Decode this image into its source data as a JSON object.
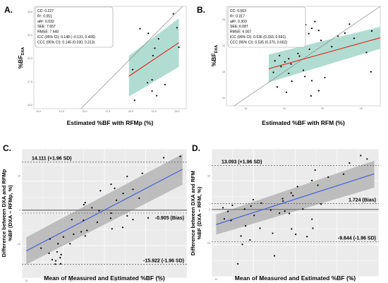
{
  "chart_data": [
    {
      "panel": "A.",
      "type": "scatter",
      "xlabel": "Estimated %BF with RFMp (%)",
      "ylabel": "%BF",
      "ylabel_sub": "DXA",
      "xlim": [
        9.5,
        26
      ],
      "ylim": [
        14.6,
        25.6
      ],
      "x_ticks": [
        "10.0",
        "12.5",
        "15.0",
        "17.5",
        "20.0",
        "22.5",
        "25.0"
      ],
      "y_ticks": [
        "15.0",
        "17.5",
        "20.0",
        "22.5",
        "25.0"
      ],
      "stats": [
        "CC: 0.227",
        "R²: 0.051",
        "aR²: 0.032",
        "SEE: 7.657",
        "RMSE: 7.640",
        "ICC (95% CI): 0.148 (−0.131, 0.406)",
        "CCC (95% CI): 0.145 (0.030, 0.313)"
      ],
      "identity_line": true,
      "fit_line": {
        "x": [
          19.8,
          25.2
        ],
        "y": [
          18.1,
          21.7
        ]
      },
      "ci_band": {
        "x": [
          19.8,
          25.2
        ],
        "upper": [
          20.3,
          24.3
        ],
        "lower": [
          15.9,
          19.1
        ]
      },
      "points": [
        [
          21.0,
          23.2
        ],
        [
          21.9,
          22.7
        ],
        [
          24.6,
          24.8
        ],
        [
          25.0,
          23.3
        ],
        [
          22.6,
          21.1
        ],
        [
          23.0,
          22.1
        ],
        [
          25.2,
          21.2
        ],
        [
          22.4,
          20.3
        ],
        [
          20.2,
          18.8
        ],
        [
          22.3,
          17.7
        ],
        [
          21.8,
          17.4
        ],
        [
          23.7,
          17.2
        ],
        [
          22.3,
          16.5
        ],
        [
          20.4,
          15.5
        ],
        [
          22.8,
          16.0
        ]
      ]
    },
    {
      "panel": "B.",
      "type": "scatter",
      "xlabel": "Estimated %BF with RFM (%)",
      "ylabel": "%BF",
      "ylabel_sub": "DXA",
      "xlim": [
        7.5,
        27.5
      ],
      "ylim": [
        8.5,
        27.5
      ],
      "x_ticks": [
        "10",
        "15",
        "20",
        "25"
      ],
      "y_ticks": [
        "10",
        "15",
        "20",
        "25"
      ],
      "stats": [
        "CC: 0.563",
        "R²: 0.317",
        "aR²: 0.303",
        "SEE: 6.087",
        "RMSE: 6.007",
        "ICC (95% CI): 0.536 (0.333, 0.691)",
        "CCC (95% CI): 0.535 (0.370, 0.662)"
      ],
      "identity_line": true,
      "fit_line": {
        "x": [
          13.0,
          27.5
        ],
        "y": [
          15.6,
          21.5
        ]
      },
      "ci_band": {
        "x": [
          13.0,
          27.5
        ],
        "upper": [
          18.3,
          23.6
        ],
        "lower": [
          13.0,
          19.4
        ]
      },
      "points": [
        [
          19.0,
          24.6
        ],
        [
          17.8,
          24.0
        ],
        [
          18.6,
          23.3
        ],
        [
          19.5,
          22.9
        ],
        [
          18.2,
          22.3
        ],
        [
          17.3,
          21.3
        ],
        [
          19.8,
          21.0
        ],
        [
          21.2,
          19.8
        ],
        [
          18.3,
          19.3
        ],
        [
          16.8,
          18.5
        ],
        [
          14.4,
          18.1
        ],
        [
          17.0,
          18.0
        ],
        [
          15.6,
          17.5
        ],
        [
          13.8,
          17.1
        ],
        [
          15.1,
          16.9
        ],
        [
          15.9,
          16.5
        ],
        [
          14.6,
          16.0
        ],
        [
          17.5,
          15.3
        ],
        [
          15.6,
          14.7
        ],
        [
          17.7,
          14.1
        ],
        [
          13.6,
          14.9
        ],
        [
          22.0,
          21.8
        ],
        [
          22.9,
          22.4
        ],
        [
          24.1,
          21.4
        ],
        [
          26.4,
          22.8
        ],
        [
          23.5,
          24.1
        ],
        [
          25.7,
          18.7
        ],
        [
          26.3,
          15.0
        ],
        [
          20.3,
          13.9
        ],
        [
          18.6,
          13.3
        ],
        [
          16.0,
          13.2
        ],
        [
          14.1,
          12.1
        ],
        [
          19.5,
          11.4
        ],
        [
          18.5,
          10.4
        ],
        [
          15.3,
          11.1
        ]
      ]
    },
    {
      "panel": "C.",
      "type": "scatter",
      "xlabel": "Mean of Measured and Estimated %BF (%)",
      "ylabel": "Difference between DXA and RFMp %BF (DXA − RFMp, %)",
      "ylabel_lines": [
        "Difference between DXA and RFMp",
        "%BF (DXA − RFMp, %)"
      ],
      "xlim": [
        9,
        46
      ],
      "ylim": [
        -20,
        18
      ],
      "x_ticks": [
        "10",
        "20",
        "30",
        "40"
      ],
      "y_ticks": [
        "-10",
        "0",
        "10"
      ],
      "limit_labels": {
        "upper": "14.111 (+1.96 SD)",
        "bias": "-0.905 (Bias)",
        "lower": "-15.922 (-1.96 SD)"
      },
      "limits": {
        "upper": 14.111,
        "bias": -0.905,
        "lower": -15.922
      },
      "fit_line": {
        "x": [
          10,
          45
        ],
        "y": [
          -12,
          12
        ]
      },
      "ci_band": {
        "x": [
          10,
          45
        ],
        "upper": [
          -8.0,
          16.5
        ],
        "lower": [
          -16.0,
          7.5
        ]
      },
      "points": [
        [
          40.8,
          15.4
        ],
        [
          44.5,
          15.8
        ],
        [
          36.0,
          10.8
        ],
        [
          32.6,
          9.9
        ],
        [
          29.0,
          7.6
        ],
        [
          29.8,
          6.4
        ],
        [
          33.9,
          6.1
        ],
        [
          26.6,
          5.7
        ],
        [
          35.3,
          3.5
        ],
        [
          31.7,
          4.9
        ],
        [
          30.2,
          2.9
        ],
        [
          23.2,
          2.2
        ],
        [
          22.9,
          1.6
        ],
        [
          24.7,
          0.7
        ],
        [
          26.3,
          -0.2
        ],
        [
          29.0,
          -0.9
        ],
        [
          32.6,
          -1.7
        ],
        [
          33.9,
          -2.8
        ],
        [
          37.3,
          -2.3
        ],
        [
          28.9,
          -2.4
        ],
        [
          22.8,
          -3.0
        ],
        [
          20.2,
          -2.8
        ],
        [
          25.9,
          -3.6
        ],
        [
          31.6,
          -5.1
        ],
        [
          29.2,
          -5.5
        ],
        [
          23.6,
          -6.0
        ],
        [
          22.3,
          -6.4
        ],
        [
          23.2,
          -7.6
        ],
        [
          20.6,
          -7.1
        ],
        [
          18.3,
          -7.9
        ],
        [
          15.3,
          -8.5
        ],
        [
          17.1,
          -9.9
        ],
        [
          15.1,
          -12.7
        ],
        [
          16.9,
          -12.3
        ],
        [
          17.8,
          -13.1
        ],
        [
          17.6,
          -14.0
        ],
        [
          16.6,
          -14.9
        ],
        [
          15.8,
          -14.6
        ],
        [
          16.5,
          -15.9
        ],
        [
          17.7,
          -15.8
        ],
        [
          19.8,
          -9.9
        ],
        [
          13.3,
          -11.2
        ]
      ]
    },
    {
      "panel": "D.",
      "type": "scatter",
      "xlabel": "Mean of Measured and Estimated %BF (%)",
      "ylabel": "Difference between DXA and RFM %BF (DXA − RFM, %)",
      "ylabel_lines": [
        "Difference between DXA and RFM",
        "%BF (DXA − RFM, %)"
      ],
      "xlim": [
        9,
        46
      ],
      "ylim": [
        -20,
        18
      ],
      "x_ticks": [
        "10",
        "20",
        "30",
        "40"
      ],
      "y_ticks": [
        "-10",
        "0",
        "10"
      ],
      "limit_labels": {
        "upper": "13.093 (+1.96 SD)",
        "bias": "1.724 (Bias)",
        "lower": "-9.644 (-1.96 SD)"
      },
      "limits": {
        "upper": 13.093,
        "bias": 1.724,
        "lower": -9.644
      },
      "fit_line": {
        "x": [
          10,
          45
        ],
        "y": [
          -4.5,
          10.6
        ]
      },
      "ci_band": {
        "x": [
          10,
          45
        ],
        "upper": [
          -1.5,
          14.5
        ],
        "lower": [
          -7.5,
          6.5
        ]
      },
      "points": [
        [
          42.0,
          16.0
        ],
        [
          43.4,
          15.0
        ],
        [
          39.5,
          13.8
        ],
        [
          31.9,
          11.7
        ],
        [
          38.2,
          10.5
        ],
        [
          34.8,
          9.6
        ],
        [
          31.2,
          8.6
        ],
        [
          32.5,
          7.2
        ],
        [
          28.0,
          6.8
        ],
        [
          26.6,
          4.9
        ],
        [
          27.0,
          4.1
        ],
        [
          24.7,
          3.2
        ],
        [
          24.8,
          2.5
        ],
        [
          18.2,
          2.9
        ],
        [
          20.0,
          1.9
        ],
        [
          17.7,
          1.0
        ],
        [
          13.6,
          1.2
        ],
        [
          11.5,
          0.5
        ],
        [
          16.3,
          0.1
        ],
        [
          29.2,
          0.1
        ],
        [
          22.1,
          -0.2
        ],
        [
          25.2,
          -0.5
        ],
        [
          26.2,
          -1.2
        ],
        [
          31.2,
          -2.9
        ],
        [
          24.0,
          -1.1
        ],
        [
          18.4,
          -1.8
        ],
        [
          11.8,
          -2.8
        ],
        [
          13.3,
          -3.3
        ],
        [
          16.5,
          -4.9
        ],
        [
          19.7,
          -5.6
        ],
        [
          26.7,
          -5.8
        ],
        [
          31.4,
          -5.6
        ],
        [
          22.5,
          -7.1
        ],
        [
          15.5,
          -7.9
        ],
        [
          30.1,
          -8.1
        ],
        [
          15.8,
          -10.4
        ],
        [
          17.5,
          -9.1
        ],
        [
          27.6,
          -7.4
        ],
        [
          22.9,
          -13.8
        ],
        [
          14.8,
          -16.2
        ],
        [
          33.2,
          1.6
        ],
        [
          12.6,
          -0.6
        ]
      ]
    }
  ]
}
